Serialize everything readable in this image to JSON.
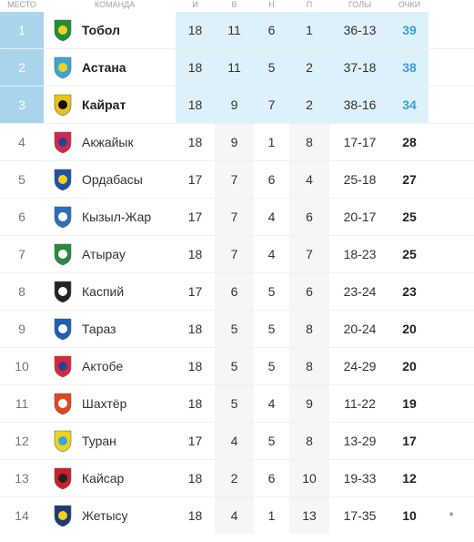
{
  "headers": {
    "place": "МЕСТО",
    "team": "КОМАНДА",
    "played": "И",
    "won": "В",
    "drawn": "Н",
    "lost": "П",
    "goals": "ГОЛЫ",
    "points": "ОЧКИ"
  },
  "rows": [
    {
      "place": "1",
      "team": "Тобол",
      "played": "18",
      "won": "11",
      "drawn": "6",
      "lost": "1",
      "goals": "36-13",
      "points": "39",
      "logo_icon": "tobol-logo-icon",
      "logo_color": "#1f8f3a",
      "logo_accent": "#f2d31a",
      "highlight": true,
      "mark": ""
    },
    {
      "place": "2",
      "team": "Астана",
      "played": "18",
      "won": "11",
      "drawn": "5",
      "lost": "2",
      "goals": "37-18",
      "points": "38",
      "logo_icon": "astana-logo-icon",
      "logo_color": "#3aa6d8",
      "logo_accent": "#f2d31a",
      "highlight": true,
      "mark": ""
    },
    {
      "place": "3",
      "team": "Кайрат",
      "played": "18",
      "won": "9",
      "drawn": "7",
      "lost": "2",
      "goals": "38-16",
      "points": "34",
      "logo_icon": "kairat-logo-icon",
      "logo_color": "#e7c21a",
      "logo_accent": "#111111",
      "highlight": true,
      "mark": ""
    },
    {
      "place": "4",
      "team": "Акжайык",
      "played": "18",
      "won": "9",
      "drawn": "1",
      "lost": "8",
      "goals": "17-17",
      "points": "28",
      "logo_icon": "akzhaiyk-logo-icon",
      "logo_color": "#d3284b",
      "logo_accent": "#2a3f9a",
      "highlight": false,
      "mark": ""
    },
    {
      "place": "5",
      "team": "Ордабасы",
      "played": "17",
      "won": "7",
      "drawn": "6",
      "lost": "4",
      "goals": "25-18",
      "points": "27",
      "logo_icon": "ordabasy-logo-icon",
      "logo_color": "#1f4fa8",
      "logo_accent": "#f2d31a",
      "highlight": false,
      "mark": ""
    },
    {
      "place": "6",
      "team": "Кызыл-Жар",
      "played": "17",
      "won": "7",
      "drawn": "4",
      "lost": "6",
      "goals": "20-17",
      "points": "25",
      "logo_icon": "kyzylzhar-logo-icon",
      "logo_color": "#2c6fb8",
      "logo_accent": "#ffffff",
      "highlight": false,
      "mark": ""
    },
    {
      "place": "7",
      "team": "Атырау",
      "played": "18",
      "won": "7",
      "drawn": "4",
      "lost": "7",
      "goals": "18-23",
      "points": "25",
      "logo_icon": "atyrau-logo-icon",
      "logo_color": "#2a8a3c",
      "logo_accent": "#ffffff",
      "highlight": false,
      "mark": ""
    },
    {
      "place": "8",
      "team": "Каспий",
      "played": "17",
      "won": "6",
      "drawn": "5",
      "lost": "6",
      "goals": "23-24",
      "points": "23",
      "logo_icon": "kaspiy-logo-icon",
      "logo_color": "#222222",
      "logo_accent": "#ffffff",
      "highlight": false,
      "mark": ""
    },
    {
      "place": "9",
      "team": "Тараз",
      "played": "18",
      "won": "5",
      "drawn": "5",
      "lost": "8",
      "goals": "20-24",
      "points": "20",
      "logo_icon": "taraz-logo-icon",
      "logo_color": "#1f5fb0",
      "logo_accent": "#ffffff",
      "highlight": false,
      "mark": ""
    },
    {
      "place": "10",
      "team": "Актобе",
      "played": "18",
      "won": "5",
      "drawn": "5",
      "lost": "8",
      "goals": "24-29",
      "points": "20",
      "logo_icon": "aktobe-logo-icon",
      "logo_color": "#d8273c",
      "logo_accent": "#2a3f9a",
      "highlight": false,
      "mark": ""
    },
    {
      "place": "11",
      "team": "Шахтёр",
      "played": "18",
      "won": "5",
      "drawn": "4",
      "lost": "9",
      "goals": "11-22",
      "points": "19",
      "logo_icon": "shakhter-logo-icon",
      "logo_color": "#e0461c",
      "logo_accent": "#ffffff",
      "highlight": false,
      "mark": ""
    },
    {
      "place": "12",
      "team": "Туран",
      "played": "17",
      "won": "4",
      "drawn": "5",
      "lost": "8",
      "goals": "13-29",
      "points": "17",
      "logo_icon": "turan-logo-icon",
      "logo_color": "#f0d21c",
      "logo_accent": "#3aa6d8",
      "highlight": false,
      "mark": ""
    },
    {
      "place": "13",
      "team": "Кайсар",
      "played": "18",
      "won": "2",
      "drawn": "6",
      "lost": "10",
      "goals": "19-33",
      "points": "12",
      "logo_icon": "kaisar-logo-icon",
      "logo_color": "#c9202c",
      "logo_accent": "#222222",
      "highlight": false,
      "mark": ""
    },
    {
      "place": "14",
      "team": "Жетысу",
      "played": "18",
      "won": "4",
      "drawn": "1",
      "lost": "13",
      "goals": "17-35",
      "points": "10",
      "logo_icon": "zhetysu-logo-icon",
      "logo_color": "#1a3a7a",
      "logo_accent": "#f2d31a",
      "highlight": false,
      "mark": "*"
    }
  ]
}
